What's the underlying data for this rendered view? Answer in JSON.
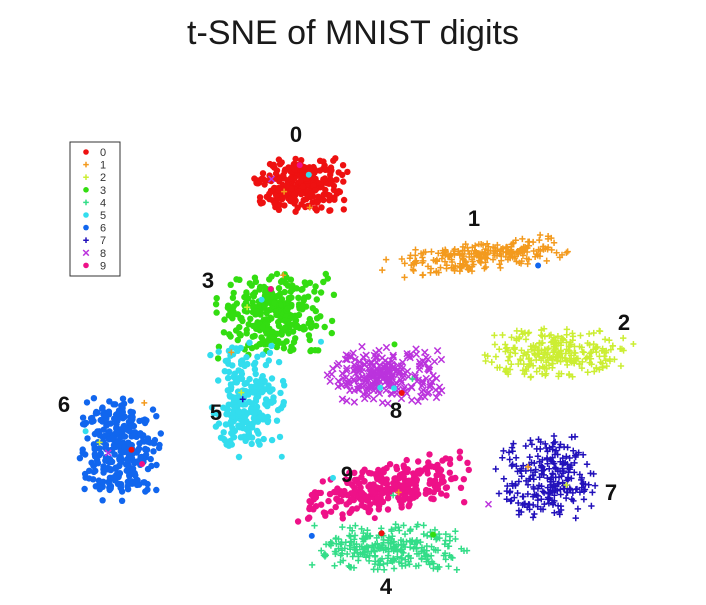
{
  "title": "t-SNE of MNIST digits",
  "chart_data": {
    "type": "scatter",
    "title": "t-SNE of MNIST digits",
    "xlabel": "",
    "ylabel": "",
    "axes_visible": false,
    "grid": false,
    "legend_position": "top-left",
    "legend_entries": [
      "0",
      "1",
      "2",
      "3",
      "4",
      "5",
      "6",
      "7",
      "8",
      "9"
    ],
    "series": [
      {
        "name": "0",
        "color": "#ee1111",
        "marker": "dot",
        "center": [
          300,
          185
        ],
        "spread": [
          48,
          28
        ],
        "count": 260,
        "cluster_label": "0"
      },
      {
        "name": "1",
        "color": "#f39a1e",
        "marker": "plus",
        "center": [
          478,
          256
        ],
        "spread": [
          100,
          16
        ],
        "count": 240,
        "cluster_label": "1",
        "tilt": -0.13
      },
      {
        "name": "2",
        "color": "#ccee33",
        "marker": "plus",
        "center": [
          555,
          352
        ],
        "spread": [
          72,
          26
        ],
        "count": 260,
        "cluster_label": "2"
      },
      {
        "name": "3",
        "color": "#33dd11",
        "marker": "dot",
        "center": [
          275,
          315
        ],
        "spread": [
          60,
          45
        ],
        "count": 300,
        "cluster_label": "3"
      },
      {
        "name": "4",
        "color": "#33dd88",
        "marker": "plus",
        "center": [
          390,
          547
        ],
        "spread": [
          80,
          24
        ],
        "count": 270,
        "cluster_label": "4"
      },
      {
        "name": "5",
        "color": "#33ddee",
        "marker": "dot",
        "center": [
          247,
          400
        ],
        "spread": [
          38,
          58
        ],
        "count": 230,
        "cluster_label": "5"
      },
      {
        "name": "6",
        "color": "#1166ee",
        "marker": "dot",
        "center": [
          120,
          448
        ],
        "spread": [
          42,
          55
        ],
        "count": 300,
        "cluster_label": "6"
      },
      {
        "name": "7",
        "color": "#2211bb",
        "marker": "plus",
        "center": [
          545,
          480
        ],
        "spread": [
          52,
          48
        ],
        "count": 240,
        "cluster_label": "7"
      },
      {
        "name": "8",
        "color": "#bb33dd",
        "marker": "cross",
        "center": [
          385,
          375
        ],
        "spread": [
          60,
          30
        ],
        "count": 250,
        "cluster_label": "8"
      },
      {
        "name": "9",
        "color": "#ee1188",
        "marker": "dot",
        "center": [
          385,
          488
        ],
        "spread": [
          92,
          26
        ],
        "count": 290,
        "cluster_label": "9",
        "tilt": -0.2
      }
    ]
  }
}
